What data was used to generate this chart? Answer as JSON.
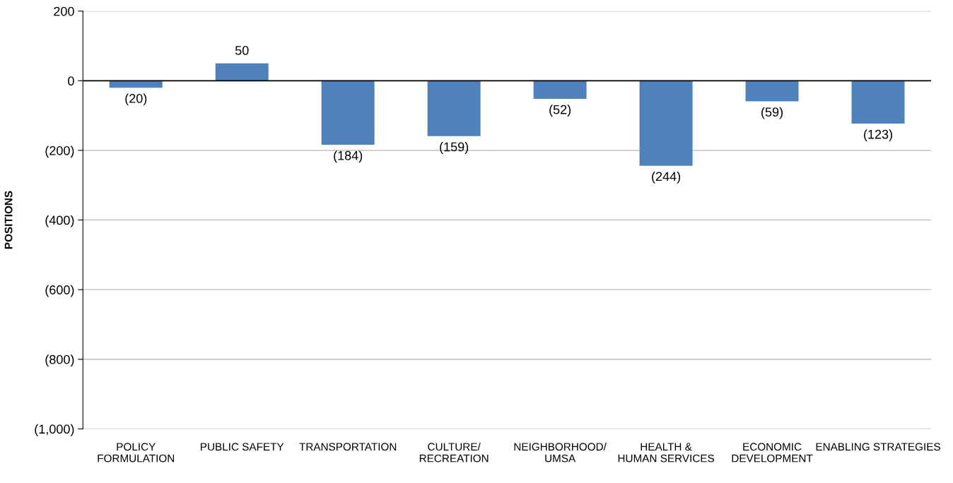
{
  "chart_data": {
    "type": "bar",
    "ylabel": "POSITIONS",
    "categories": [
      "POLICY\nFORMULATION",
      "PUBLIC SAFETY",
      "TRANSPORTATION",
      "CULTURE/\nRECREATION",
      "NEIGHBORHOOD/\nUMSA",
      "HEALTH &\nHUMAN SERVICES",
      "ECONOMIC\nDEVELOPMENT",
      "ENABLING STRATEGIES"
    ],
    "values": [
      -20,
      50,
      -184,
      -159,
      -52,
      -244,
      -59,
      -123
    ],
    "value_labels": [
      "(20)",
      "50",
      "(184)",
      "(159)",
      "(52)",
      "(244)",
      "(59)",
      "(123)"
    ],
    "color": "#4f81bd",
    "ylim": [
      -1000,
      200
    ],
    "yticks": [
      200,
      {
        "value": 0,
        "label": "0"
      },
      {
        "value": -200,
        "label": "(200)"
      },
      {
        "value": -400,
        "label": "(400)"
      },
      {
        "value": -600,
        "label": "(600)"
      },
      {
        "value": -800,
        "label": "(800)"
      },
      {
        "value": -1000,
        "label": "(1,000)"
      }
    ],
    "grid": "y"
  }
}
